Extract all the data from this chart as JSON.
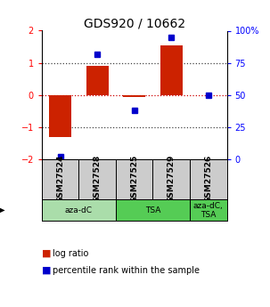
{
  "title": "GDS920 / 10662",
  "samples": [
    "GSM27524",
    "GSM27528",
    "GSM27525",
    "GSM27529",
    "GSM27526"
  ],
  "log_ratio": [
    -1.3,
    0.9,
    -0.05,
    1.55,
    0.0
  ],
  "percentile_rank": [
    2,
    82,
    38,
    95,
    50
  ],
  "agents": [
    {
      "label": "aza-dC",
      "span": [
        0,
        2
      ],
      "color": "#AADDAA"
    },
    {
      "label": "TSA",
      "span": [
        2,
        4
      ],
      "color": "#55CC55"
    },
    {
      "label": "aza-dC,\nTSA",
      "span": [
        4,
        5
      ],
      "color": "#55CC55"
    }
  ],
  "bar_color": "#CC2200",
  "dot_color": "#0000CC",
  "ylim": [
    -2,
    2
  ],
  "y2lim": [
    0,
    100
  ],
  "yticks": [
    -2,
    -1,
    0,
    1,
    2
  ],
  "y2ticks": [
    0,
    25,
    50,
    75,
    100
  ],
  "y2tick_labels": [
    "0",
    "25",
    "50",
    "75",
    "100%"
  ],
  "hline_color_0": "#CC0000",
  "hline_color_other": "#444444",
  "bg_color": "#FFFFFF",
  "sample_box_color": "#CCCCCC",
  "title_fontsize": 10,
  "tick_fontsize": 7,
  "legend_fontsize": 7
}
